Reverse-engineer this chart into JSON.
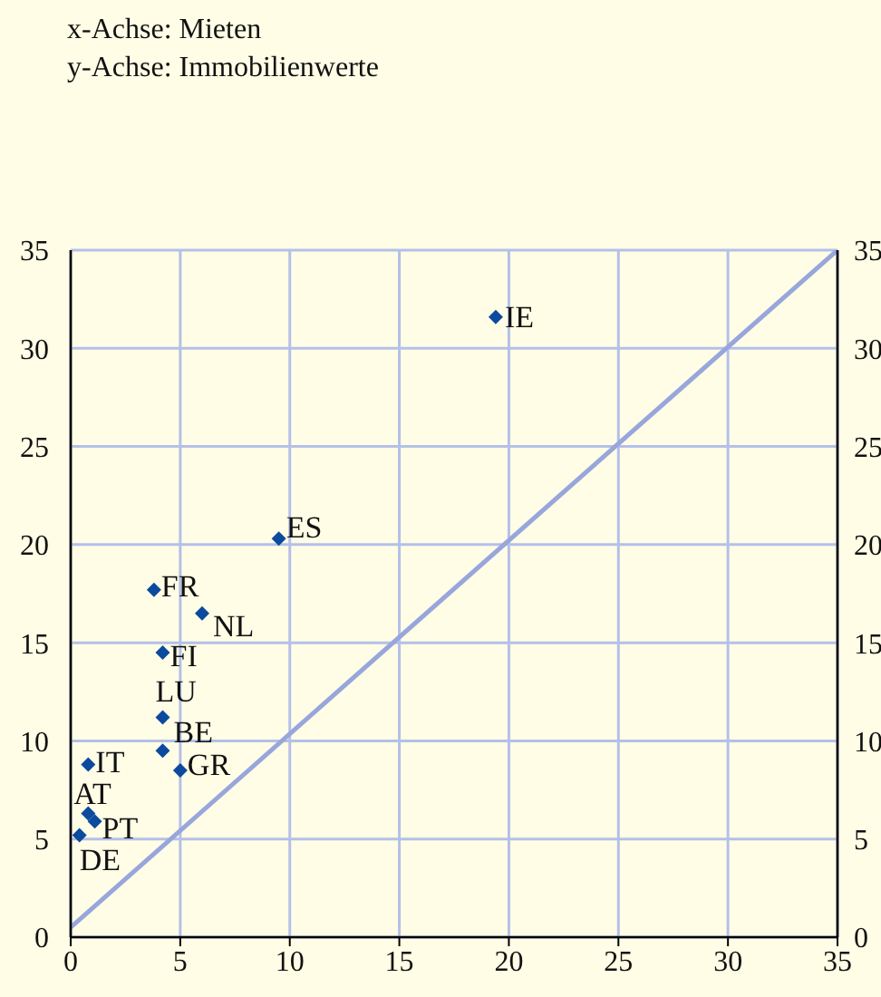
{
  "chart_data": {
    "type": "scatter",
    "xlim": [
      0,
      35
    ],
    "xticks": [
      0,
      5,
      10,
      15,
      20,
      25,
      30,
      35
    ],
    "ylim": [
      0,
      35
    ],
    "yticks": [
      0,
      5,
      10,
      15,
      20,
      25,
      30,
      35
    ],
    "y2lim": [
      0,
      35
    ],
    "y2ticks": [
      0,
      5,
      10,
      15,
      20,
      25,
      30,
      35
    ],
    "grid": true,
    "marker": "diamond",
    "series": [
      {
        "type": "scatter",
        "color": "#0b4a9e",
        "x": [
          19.4,
          9.5,
          3.8,
          6.0,
          4.2,
          4.2,
          4.2,
          5.0,
          0.8,
          0.8,
          1.1,
          0.4
        ],
        "values": [
          31.6,
          20.3,
          17.7,
          16.5,
          14.5,
          11.2,
          9.5,
          8.5,
          8.8,
          6.3,
          5.9,
          5.2
        ]
      },
      {
        "type": "line",
        "color": "#98a6dc",
        "marker": "none",
        "x": [
          0,
          35
        ],
        "values": [
          0.5,
          35
        ]
      }
    ],
    "annotations": [
      "x-Achse: Mieten",
      "y-Achse: Immobilienwerte",
      {
        "text": "IE",
        "x": 19.4,
        "y": 31.6
      },
      {
        "text": "ES",
        "x": 9.5,
        "y": 20.3
      },
      {
        "text": "FR",
        "x": 3.8,
        "y": 17.7
      },
      {
        "text": "NL",
        "x": 6.0,
        "y": 16.5
      },
      {
        "text": "FI",
        "x": 4.2,
        "y": 14.5
      },
      {
        "text": "LU",
        "x": 4.2,
        "y": 11.2
      },
      {
        "text": "BE",
        "x": 4.2,
        "y": 9.5
      },
      {
        "text": "GR",
        "x": 5.0,
        "y": 8.5
      },
      {
        "text": "IT",
        "x": 0.8,
        "y": 8.8
      },
      {
        "text": "AT",
        "x": 0.8,
        "y": 6.3
      },
      {
        "text": "PT",
        "x": 1.1,
        "y": 5.9
      },
      {
        "text": "DE",
        "x": 0.4,
        "y": 5.2
      }
    ]
  }
}
